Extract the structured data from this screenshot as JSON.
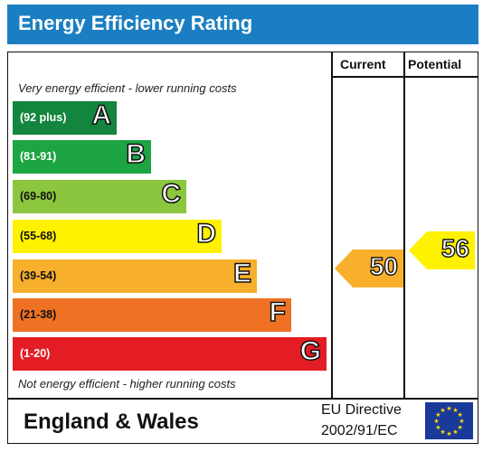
{
  "title": "Energy Efficiency Rating",
  "columns": {
    "current": "Current",
    "potential": "Potential"
  },
  "notes": {
    "top": "Very energy efficient - lower running costs",
    "bottom": "Not energy efficient - higher running costs"
  },
  "bands": [
    {
      "range": "(92 plus)",
      "letter": "A",
      "color": "#13853e",
      "text_color": "#ffffff"
    },
    {
      "range": "(81-91)",
      "letter": "B",
      "color": "#1da443",
      "text_color": "#ffffff"
    },
    {
      "range": "(69-80)",
      "letter": "C",
      "color": "#8cc63f",
      "text_color": "#111111"
    },
    {
      "range": "(55-68)",
      "letter": "D",
      "color": "#fff200",
      "text_color": "#111111"
    },
    {
      "range": "(39-54)",
      "letter": "E",
      "color": "#f7af2c",
      "text_color": "#111111"
    },
    {
      "range": "(21-38)",
      "letter": "F",
      "color": "#ef7123",
      "text_color": "#111111"
    },
    {
      "range": "(1-20)",
      "letter": "G",
      "color": "#e31d23",
      "text_color": "#ffffff"
    }
  ],
  "ratings": {
    "current": {
      "value": "50",
      "band": "E",
      "color": "#f7af2c"
    },
    "potential": {
      "value": "56",
      "band": "D",
      "color": "#fff200"
    }
  },
  "footer": {
    "region": "England & Wales",
    "directive_line1": "EU Directive",
    "directive_line2": "2002/91/EC",
    "flag_icon": "eu-flag-icon"
  }
}
